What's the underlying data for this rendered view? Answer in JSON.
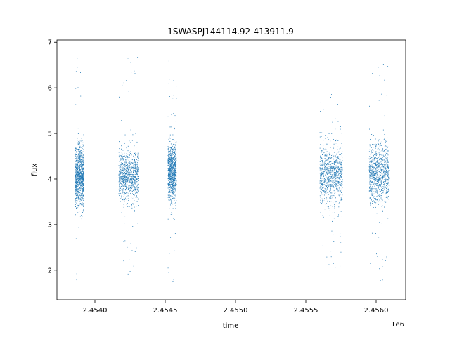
{
  "chart_data": {
    "type": "scatter",
    "title": "1SWASPJ144114.92-413911.9",
    "xlabel": "time",
    "ylabel": "flux",
    "x_offset_label": "1e6",
    "xlim": [
      2453730,
      2456210
    ],
    "ylim": [
      1.35,
      7.05
    ],
    "x_ticks": [
      2.454,
      2.4545,
      2.455,
      2.4555,
      2.456
    ],
    "x_tick_labels": [
      "2.4540",
      "2.4545",
      "2.4550",
      "2.4555",
      "2.4560"
    ],
    "y_ticks": [
      2,
      3,
      4,
      5,
      6,
      7
    ],
    "y_tick_labels": [
      "2",
      "3",
      "4",
      "5",
      "6",
      "7"
    ],
    "grid": false,
    "legend": "none",
    "point_color": "#1f77b4",
    "series": [
      {
        "segments": [
          {
            "x_start": 2453860,
            "x_end": 2453920,
            "center": 4.05,
            "spread": 0.55,
            "min": 1.6,
            "max": 6.8
          },
          {
            "x_start": 2454170,
            "x_end": 2454310,
            "center": 4.05,
            "spread": 0.45,
            "min": 1.9,
            "max": 6.8
          },
          {
            "x_start": 2454520,
            "x_end": 2454580,
            "center": 4.15,
            "spread": 0.5,
            "min": 1.7,
            "max": 6.7
          },
          {
            "x_start": 2455600,
            "x_end": 2455760,
            "center": 4.1,
            "spread": 0.55,
            "min": 2.0,
            "max": 5.9
          },
          {
            "x_start": 2455950,
            "x_end": 2456090,
            "center": 4.15,
            "spread": 0.55,
            "min": 1.7,
            "max": 6.6
          }
        ]
      }
    ]
  }
}
